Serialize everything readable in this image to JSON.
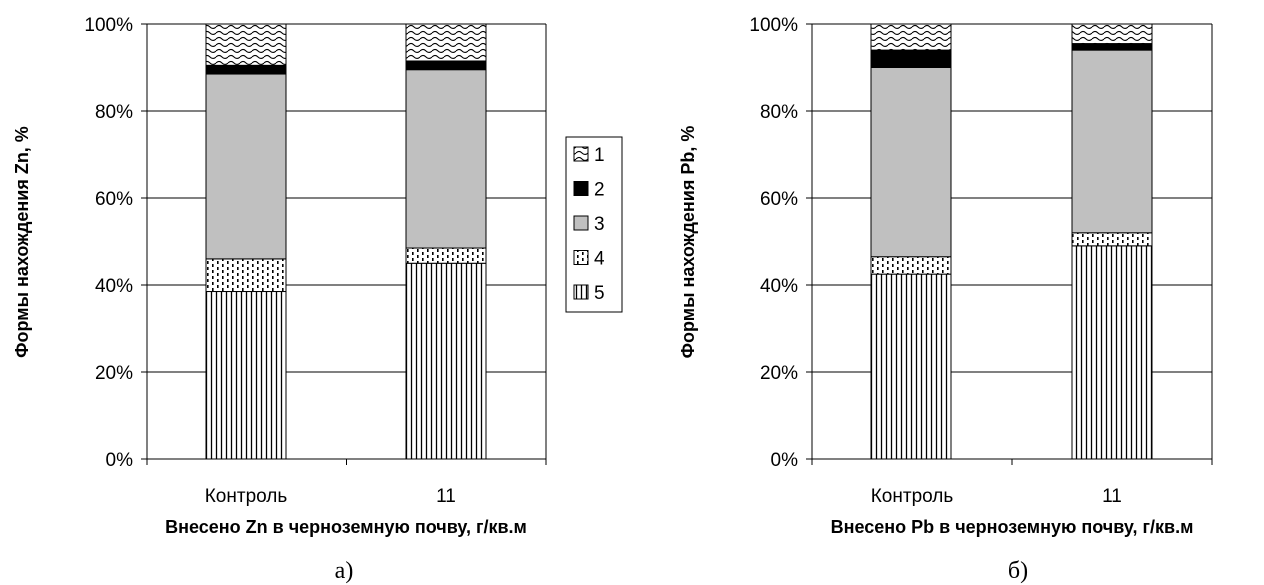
{
  "legend": {
    "entries": [
      "1",
      "2",
      "3",
      "4",
      "5"
    ],
    "patterns": [
      "wave-hatch",
      "solid-black",
      "solid-gray",
      "dotted",
      "vertical-lines"
    ]
  },
  "colors": {
    "fraction_3": "#c0c0c0",
    "fraction_2": "#000000",
    "bar_outline": "#000000",
    "gridline": "#000000"
  },
  "chart_data": [
    {
      "type": "bar",
      "stacked": true,
      "panel_label": "а)",
      "categories": [
        "Контроль",
        "11"
      ],
      "series": [
        {
          "name": "5",
          "values": [
            38.5,
            45
          ]
        },
        {
          "name": "4",
          "values": [
            7.5,
            3.5
          ]
        },
        {
          "name": "3",
          "values": [
            42.5,
            41
          ]
        },
        {
          "name": "2",
          "values": [
            2,
            2
          ]
        },
        {
          "name": "1",
          "values": [
            9.5,
            8.5
          ]
        }
      ],
      "xlabel": "Внесено Zn в черноземную почву, г/кв.м",
      "ylabel": "Формы нахождения Zn, %",
      "yticks": [
        "0%",
        "20%",
        "40%",
        "60%",
        "80%",
        "100%"
      ],
      "ylim": [
        0,
        100
      ],
      "grid": true,
      "legend_position": "right"
    },
    {
      "type": "bar",
      "stacked": true,
      "panel_label": "б)",
      "categories": [
        "Контроль",
        "11"
      ],
      "series": [
        {
          "name": "5",
          "values": [
            42.5,
            49
          ]
        },
        {
          "name": "4",
          "values": [
            4,
            3
          ]
        },
        {
          "name": "3",
          "values": [
            43.5,
            42
          ]
        },
        {
          "name": "2",
          "values": [
            4,
            1.5
          ]
        },
        {
          "name": "1",
          "values": [
            6,
            4.5
          ]
        }
      ],
      "xlabel": "Внесено Pb в черноземную почву, г/кв.м",
      "ylabel": "Формы нахождения Pb, %",
      "yticks": [
        "0%",
        "20%",
        "40%",
        "60%",
        "80%",
        "100%"
      ],
      "ylim": [
        0,
        100
      ],
      "grid": true,
      "legend_position": "none"
    }
  ]
}
